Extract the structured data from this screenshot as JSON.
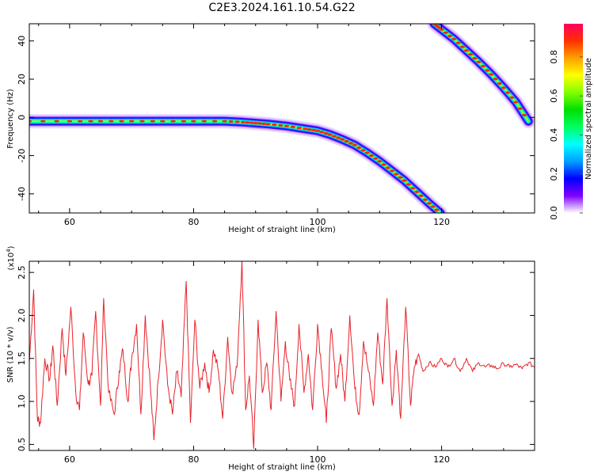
{
  "title": "C2E3.2024.161.10.54.G22",
  "chart_data": [
    {
      "type": "heatmap",
      "xlabel": "Height of straight line (km)",
      "ylabel": "Frequency (Hz)",
      "xlim": [
        53.5,
        135
      ],
      "ylim": [
        -50,
        49
      ],
      "x_ticks": [
        60,
        80,
        100,
        120
      ],
      "y_ticks": [
        -40,
        -20,
        0,
        20,
        40
      ],
      "traces": [
        {
          "name": "",
          "x": [
            53.5,
            60,
            65,
            70,
            75,
            80,
            85,
            88,
            90,
            92,
            95,
            98,
            100,
            102,
            104,
            106,
            108,
            110,
            112,
            114,
            116,
            118,
            119.8
          ],
          "y": [
            -2,
            -2,
            -2,
            -2,
            -2,
            -2,
            -2,
            -2.5,
            -3,
            -3.5,
            -4.5,
            -6,
            -7,
            -9,
            -11.5,
            -14.5,
            -18.5,
            -23,
            -28,
            -33,
            -39,
            -45,
            -50
          ]
        },
        {
          "name": "",
          "x": [
            118.8,
            120,
            122,
            124,
            126,
            128,
            130,
            132,
            134
          ],
          "y": [
            49,
            46,
            41,
            35,
            29,
            22.5,
            15.5,
            8,
            -2
          ]
        }
      ],
      "colorbar": {
        "label": "Normalized spectral amplitude",
        "range": [
          0,
          0.97
        ],
        "ticks": [
          0.0,
          0.2,
          0.4,
          0.6,
          0.8
        ],
        "tick_labels": [
          "0.0",
          "0.2",
          "0.4",
          "0.6",
          "0.8"
        ],
        "colormap": [
          "#ffffff",
          "#8000ff",
          "#0000ff",
          "#00a0ff",
          "#00ffff",
          "#00ff60",
          "#00e000",
          "#80ff00",
          "#ffff00",
          "#ffa000",
          "#ff3000",
          "#ff0060"
        ]
      }
    },
    {
      "type": "line",
      "xlabel": "Height of straight line (km)",
      "ylabel": "SNR (10 * v/v)",
      "y_scale_label": "(x10",
      "y_scale_exp": "4",
      "y_scale_close": ")",
      "xlim": [
        53.5,
        135
      ],
      "ylim": [
        0.43,
        2.63
      ],
      "x_ticks": [
        60,
        80,
        100,
        120
      ],
      "y_ticks": [
        0.5,
        1.0,
        1.5,
        2.0,
        2.5
      ],
      "y_tick_labels": [
        "0.5",
        "1.0",
        "1.5",
        "2.0",
        "2.5"
      ],
      "color": "#e8222a",
      "x": [
        53.5,
        54.2,
        54.8,
        55.3,
        56.0,
        56.8,
        57.3,
        58.0,
        58.8,
        59.4,
        60.2,
        61.0,
        61.6,
        62.2,
        63.0,
        63.6,
        64.2,
        65.0,
        65.5,
        66.3,
        67.2,
        68.0,
        68.6,
        69.4,
        70.0,
        70.8,
        71.5,
        72.2,
        73.0,
        73.6,
        74.3,
        75.0,
        75.8,
        76.6,
        77.3,
        78.0,
        78.8,
        79.5,
        80.2,
        81.0,
        81.8,
        82.5,
        83.2,
        84.0,
        84.7,
        85.5,
        86.2,
        87.0,
        87.8,
        88.4,
        89.0,
        89.7,
        90.4,
        91.1,
        91.8,
        92.5,
        93.3,
        94.1,
        94.8,
        95.5,
        96.3,
        97.0,
        97.8,
        98.5,
        99.2,
        100.0,
        100.7,
        101.4,
        102.2,
        103.0,
        103.7,
        104.4,
        105.2,
        106.0,
        106.7,
        107.4,
        108.2,
        109.0,
        109.7,
        110.5,
        111.2,
        112.0,
        112.7,
        113.4,
        114.2,
        115.0,
        115.6,
        116.3,
        117.0,
        118.0,
        119.0,
        120.0,
        121.0,
        122.0,
        123.0,
        124.0,
        125.0,
        126.0,
        127.0,
        128.0,
        129.0,
        130.0,
        131.0,
        132.0,
        133.0,
        134.0,
        135.0
      ],
      "y": [
        1.45,
        2.3,
        0.8,
        0.75,
        1.5,
        1.25,
        1.65,
        0.95,
        1.85,
        1.3,
        2.1,
        1.1,
        0.9,
        1.8,
        1.2,
        1.3,
        2.05,
        0.95,
        2.2,
        1.1,
        0.85,
        1.35,
        1.6,
        1.0,
        1.5,
        1.9,
        0.85,
        2.0,
        1.2,
        0.55,
        1.25,
        1.95,
        1.2,
        0.85,
        1.35,
        1.05,
        2.4,
        0.75,
        1.95,
        1.15,
        1.45,
        1.1,
        1.6,
        1.35,
        0.8,
        1.75,
        1.1,
        1.4,
        2.65,
        0.9,
        1.3,
        0.45,
        1.95,
        1.1,
        1.45,
        0.9,
        2.05,
        1.0,
        1.7,
        1.25,
        0.95,
        1.9,
        1.1,
        1.55,
        0.9,
        1.9,
        1.35,
        0.75,
        1.85,
        1.15,
        1.55,
        1.0,
        2.0,
        1.15,
        0.85,
        1.7,
        1.35,
        0.95,
        1.8,
        1.2,
        2.2,
        0.95,
        1.6,
        0.8,
        2.1,
        0.95,
        1.4,
        1.55,
        1.35,
        1.45,
        1.4,
        1.5,
        1.4,
        1.5,
        1.35,
        1.5,
        1.35,
        1.45,
        1.4,
        1.42,
        1.38,
        1.44,
        1.4,
        1.43,
        1.38,
        1.45,
        1.4
      ]
    }
  ]
}
